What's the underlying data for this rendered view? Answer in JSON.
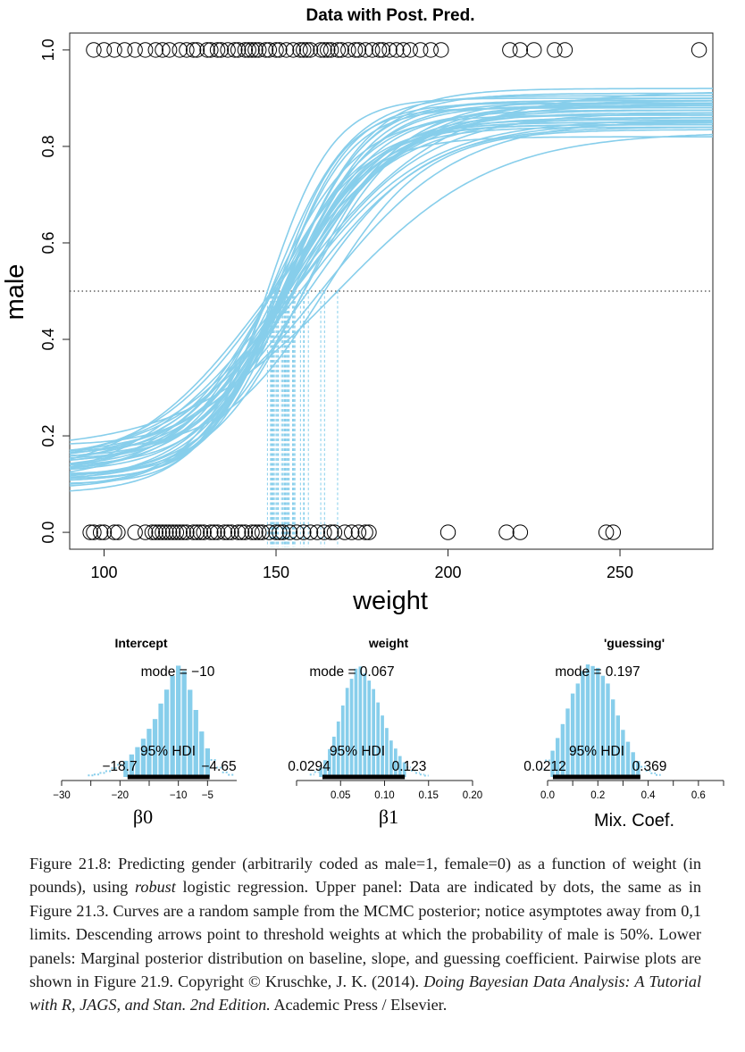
{
  "figure": {
    "main_plot": {
      "title": "Data with Post. Pred.",
      "xlabel": "weight",
      "ylabel": "male"
    },
    "panels": [
      {
        "title": "Intercept",
        "mode_label": "mode = −10",
        "hdi_label": "95% HDI",
        "hdi_low_label": "−18.7",
        "hdi_high_label": "−4.65",
        "xlabel": "β0"
      },
      {
        "title": "weight",
        "mode_label": "mode = 0.067",
        "hdi_label": "95% HDI",
        "hdi_low_label": "0.0294",
        "hdi_high_label": "0.123",
        "xlabel": "β1"
      },
      {
        "title": "'guessing'",
        "mode_label": "mode = 0.197",
        "hdi_label": "95% HDI",
        "hdi_low_label": "0.0212",
        "hdi_high_label": "0.369",
        "xlabel": "Mix. Coef."
      }
    ]
  },
  "chart_data": [
    {
      "type": "scatter",
      "title": "Data with Post. Pred.",
      "xlabel": "weight",
      "ylabel": "male",
      "xlim": [
        90,
        277
      ],
      "ylim": [
        -0.035,
        1.035
      ],
      "xticks": [
        "100",
        "150",
        "200",
        "250"
      ],
      "yticks": [
        "0.0",
        "0.2",
        "0.4",
        "0.6",
        "0.8",
        "1.0"
      ],
      "reference_line_y": 0.5,
      "colors": {
        "curves": "#87CEEB",
        "points": "#000000",
        "reference": "#444444"
      },
      "points_male": [
        97,
        100,
        103,
        106,
        109,
        112,
        115,
        117,
        119,
        122,
        124,
        126,
        127,
        130,
        131,
        133,
        134,
        136,
        138,
        139,
        141,
        142,
        143,
        144,
        145,
        147,
        148,
        150,
        151,
        153,
        155,
        157,
        158,
        159,
        160,
        163,
        164,
        165,
        166,
        168,
        169,
        171,
        173,
        174,
        176,
        178,
        180,
        181,
        183,
        185,
        187,
        189,
        192,
        195,
        198,
        218,
        221,
        225,
        231,
        234,
        273
      ],
      "points_female": [
        96,
        97,
        99,
        100,
        103,
        104,
        109,
        112,
        114,
        115,
        116,
        117,
        118,
        119,
        120,
        121,
        122,
        123,
        124,
        126,
        127,
        128,
        129,
        131,
        132,
        133,
        135,
        136,
        137,
        139,
        140,
        141,
        143,
        144,
        145,
        146,
        148,
        150,
        151,
        152,
        154,
        156,
        158,
        160,
        162,
        164,
        166,
        167,
        170,
        172,
        174,
        176,
        177,
        200,
        217,
        221,
        246,
        248
      ],
      "curves": [
        {
          "guess": 0.32,
          "b1": 0.06,
          "threshold": 159.4,
          "shape": 1.07
        },
        {
          "guess": 0.29,
          "b1": 0.052,
          "threshold": 155.2,
          "shape": 0.99
        },
        {
          "guess": 0.24,
          "b1": 0.103,
          "threshold": 150.0,
          "shape": 1.01
        },
        {
          "guess": 0.3,
          "b1": 0.08,
          "threshold": 153.4,
          "shape": 0.89
        },
        {
          "guess": 0.36,
          "b1": 0.084,
          "threshold": 152.0,
          "shape": 1.03
        },
        {
          "guess": 0.21,
          "b1": 0.057,
          "threshold": 153.8,
          "shape": 1.1
        },
        {
          "guess": 0.22,
          "b1": 0.049,
          "threshold": 148.8,
          "shape": 0.93
        },
        {
          "guess": 0.28,
          "b1": 0.056,
          "threshold": 149.5,
          "shape": 1.0
        },
        {
          "guess": 0.17,
          "b1": 0.044,
          "threshold": 153.3,
          "shape": 0.99
        },
        {
          "guess": 0.29,
          "b1": 0.078,
          "threshold": 152.5,
          "shape": 0.94
        },
        {
          "guess": 0.3,
          "b1": 0.053,
          "threshold": 157.1,
          "shape": 1.12
        },
        {
          "guess": 0.2,
          "b1": 0.064,
          "threshold": 155.5,
          "shape": 0.88
        },
        {
          "guess": 0.24,
          "b1": 0.096,
          "threshold": 150.6,
          "shape": 0.98
        },
        {
          "guess": 0.26,
          "b1": 0.053,
          "threshold": 155.1,
          "shape": 1.05
        },
        {
          "guess": 0.2,
          "b1": 0.105,
          "threshold": 147.5,
          "shape": 0.89
        },
        {
          "guess": 0.33,
          "b1": 0.067,
          "threshold": 164.1,
          "shape": 0.87
        },
        {
          "guess": 0.16,
          "b1": 0.08,
          "threshold": 152.0,
          "shape": 1.11
        },
        {
          "guess": 0.22,
          "b1": 0.081,
          "threshold": 153.3,
          "shape": 1.09
        },
        {
          "guess": 0.31,
          "b1": 0.081,
          "threshold": 152.9,
          "shape": 1.11
        },
        {
          "guess": 0.32,
          "b1": 0.077,
          "threshold": 152.5,
          "shape": 0.93
        },
        {
          "guess": 0.22,
          "b1": 0.068,
          "threshold": 158.2,
          "shape": 1.06
        },
        {
          "guess": 0.23,
          "b1": 0.08,
          "threshold": 152.6,
          "shape": 0.99
        },
        {
          "guess": 0.18,
          "b1": 0.079,
          "threshold": 151.6,
          "shape": 1.04
        },
        {
          "guess": 0.25,
          "b1": 0.077,
          "threshold": 152.9,
          "shape": 1.09
        },
        {
          "guess": 0.25,
          "b1": 0.066,
          "threshold": 155.1,
          "shape": 1.05
        },
        {
          "guess": 0.34,
          "b1": 0.044,
          "threshold": 167.9,
          "shape": 0.96
        },
        {
          "guess": 0.21,
          "b1": 0.085,
          "threshold": 153.7,
          "shape": 1.06
        },
        {
          "guess": 0.26,
          "b1": 0.064,
          "threshold": 153.3,
          "shape": 0.93
        },
        {
          "guess": 0.25,
          "b1": 0.075,
          "threshold": 150.3,
          "shape": 0.95
        },
        {
          "guess": 0.28,
          "b1": 0.069,
          "threshold": 152.7,
          "shape": 0.97
        },
        {
          "guess": 0.19,
          "b1": 0.087,
          "threshold": 148.4,
          "shape": 0.96
        },
        {
          "guess": 0.29,
          "b1": 0.05,
          "threshold": 163.0,
          "shape": 0.94
        },
        {
          "guess": 0.23,
          "b1": 0.057,
          "threshold": 152.8,
          "shape": 0.98
        },
        {
          "guess": 0.3,
          "b1": 0.075,
          "threshold": 149.2,
          "shape": 0.99
        },
        {
          "guess": 0.27,
          "b1": 0.077,
          "threshold": 154.8,
          "shape": 1.03
        },
        {
          "guess": 0.23,
          "b1": 0.075,
          "threshold": 158.0,
          "shape": 0.95
        },
        {
          "guess": 0.22,
          "b1": 0.098,
          "threshold": 150.7,
          "shape": 0.95
        },
        {
          "guess": 0.27,
          "b1": 0.08,
          "threshold": 148.6,
          "shape": 1.09
        },
        {
          "guess": 0.21,
          "b1": 0.087,
          "threshold": 152.4,
          "shape": 1.1
        },
        {
          "guess": 0.31,
          "b1": 0.073,
          "threshold": 149.0,
          "shape": 1.05
        }
      ]
    },
    {
      "type": "bar",
      "title": "Intercept",
      "xlabel": "β0",
      "mode": -10,
      "hdi": [
        -18.7,
        -4.65
      ],
      "xlim": [
        -30,
        0
      ],
      "xticks": [
        {
          "value": -30,
          "label": "−30"
        },
        {
          "value": -25,
          "label": ""
        },
        {
          "value": -20,
          "label": "−20"
        },
        {
          "value": -15,
          "label": ""
        },
        {
          "value": -10,
          "label": "−10"
        },
        {
          "value": -5,
          "label": "−5"
        }
      ],
      "bin_width": 1.0,
      "bins": [
        {
          "x": -25.0,
          "h": 0.014
        },
        {
          "x": -24.0,
          "h": 0.022
        },
        {
          "x": -23.0,
          "h": 0.036
        },
        {
          "x": -22.0,
          "h": 0.052
        },
        {
          "x": -21.0,
          "h": 0.077
        },
        {
          "x": -20.0,
          "h": 0.108
        },
        {
          "x": -19.0,
          "h": 0.144
        },
        {
          "x": -18.0,
          "h": 0.2
        },
        {
          "x": -17.0,
          "h": 0.265
        },
        {
          "x": -16.0,
          "h": 0.34
        },
        {
          "x": -15.0,
          "h": 0.428
        },
        {
          "x": -14.0,
          "h": 0.514
        },
        {
          "x": -13.0,
          "h": 0.652
        },
        {
          "x": -12.0,
          "h": 0.776
        },
        {
          "x": -11.0,
          "h": 0.899
        },
        {
          "x": -10.0,
          "h": 0.989
        },
        {
          "x": -9.0,
          "h": 0.941
        },
        {
          "x": -8.0,
          "h": 0.775
        },
        {
          "x": -7.0,
          "h": 0.595
        },
        {
          "x": -6.0,
          "h": 0.404
        },
        {
          "x": -5.0,
          "h": 0.254
        },
        {
          "x": -4.0,
          "h": 0.151
        },
        {
          "x": -3.0,
          "h": 0.083
        },
        {
          "x": -2.0,
          "h": 0.041
        },
        {
          "x": -1.0,
          "h": 0.019
        }
      ]
    },
    {
      "type": "bar",
      "title": "weight",
      "xlabel": "β1",
      "mode": 0.067,
      "hdi": [
        0.0294,
        0.123
      ],
      "xlim": [
        0.0,
        0.2
      ],
      "xticks": [
        {
          "value": 0.0,
          "label": ""
        },
        {
          "value": 0.05,
          "label": "0.05"
        },
        {
          "value": 0.1,
          "label": "0.10"
        },
        {
          "value": 0.15,
          "label": "0.15"
        },
        {
          "value": 0.2,
          "label": "0.20"
        }
      ],
      "bin_width": 0.005,
      "bins": [
        {
          "x": 0.0175,
          "h": 0.021
        },
        {
          "x": 0.0225,
          "h": 0.044
        },
        {
          "x": 0.0275,
          "h": 0.084
        },
        {
          "x": 0.0325,
          "h": 0.149
        },
        {
          "x": 0.0375,
          "h": 0.248
        },
        {
          "x": 0.0425,
          "h": 0.358
        },
        {
          "x": 0.0475,
          "h": 0.493
        },
        {
          "x": 0.0525,
          "h": 0.635
        },
        {
          "x": 0.0575,
          "h": 0.791
        },
        {
          "x": 0.0625,
          "h": 0.872
        },
        {
          "x": 0.0675,
          "h": 0.962
        },
        {
          "x": 0.0725,
          "h": 0.981
        },
        {
          "x": 0.0775,
          "h": 0.922
        },
        {
          "x": 0.0825,
          "h": 0.856
        },
        {
          "x": 0.0875,
          "h": 0.781
        },
        {
          "x": 0.0925,
          "h": 0.662
        },
        {
          "x": 0.0975,
          "h": 0.546
        },
        {
          "x": 0.1025,
          "h": 0.435
        },
        {
          "x": 0.1075,
          "h": 0.324
        },
        {
          "x": 0.1125,
          "h": 0.252
        },
        {
          "x": 0.1175,
          "h": 0.186
        },
        {
          "x": 0.1225,
          "h": 0.13
        },
        {
          "x": 0.1275,
          "h": 0.085
        },
        {
          "x": 0.1325,
          "h": 0.056
        },
        {
          "x": 0.1375,
          "h": 0.036
        },
        {
          "x": 0.1425,
          "h": 0.022
        },
        {
          "x": 0.1475,
          "h": 0.012
        }
      ]
    },
    {
      "type": "bar",
      "title": "'guessing'",
      "xlabel": "Mix. Coef.",
      "mode": 0.197,
      "hdi": [
        0.0212,
        0.369
      ],
      "xlim": [
        0.0,
        0.7
      ],
      "xticks": [
        {
          "value": 0.0,
          "label": "0.0"
        },
        {
          "value": 0.1,
          "label": ""
        },
        {
          "value": 0.2,
          "label": "0.2"
        },
        {
          "value": 0.3,
          "label": ""
        },
        {
          "value": 0.4,
          "label": "0.4"
        },
        {
          "value": 0.5,
          "label": ""
        },
        {
          "value": 0.6,
          "label": "0.6"
        },
        {
          "value": 0.7,
          "label": ""
        }
      ],
      "bin_width": 0.02,
      "bins": [
        {
          "x": -0.02,
          "h": 0.07
        },
        {
          "x": 0.0,
          "h": 0.147
        },
        {
          "x": 0.02,
          "h": 0.233
        },
        {
          "x": 0.04,
          "h": 0.346
        },
        {
          "x": 0.06,
          "h": 0.47
        },
        {
          "x": 0.08,
          "h": 0.608
        },
        {
          "x": 0.1,
          "h": 0.741
        },
        {
          "x": 0.12,
          "h": 0.83
        },
        {
          "x": 0.14,
          "h": 0.941
        },
        {
          "x": 0.16,
          "h": 1.0
        },
        {
          "x": 0.18,
          "h": 0.986
        },
        {
          "x": 0.2,
          "h": 0.969
        },
        {
          "x": 0.22,
          "h": 0.899
        },
        {
          "x": 0.24,
          "h": 0.83
        },
        {
          "x": 0.26,
          "h": 0.689
        },
        {
          "x": 0.28,
          "h": 0.546
        },
        {
          "x": 0.3,
          "h": 0.418
        },
        {
          "x": 0.32,
          "h": 0.313
        },
        {
          "x": 0.34,
          "h": 0.22
        },
        {
          "x": 0.36,
          "h": 0.142
        },
        {
          "x": 0.38,
          "h": 0.09
        },
        {
          "x": 0.4,
          "h": 0.055
        },
        {
          "x": 0.42,
          "h": 0.033
        },
        {
          "x": 0.44,
          "h": 0.018
        }
      ]
    }
  ],
  "caption": {
    "part1": "Figure 21.8: Predicting gender (arbitrarily coded as male=1, female=0) as a function of weight (in pounds), using ",
    "emph1": "robust",
    "part2": " logistic regression. Upper panel: Data are indicated by dots, the same as in Figure 21.3. Curves are a random sample from the MCMC posterior; notice asymptotes away from 0,1 limits. Descending arrows point to threshold weights at which the probability of male is 50%. Lower panels: Marginal posterior distribution on baseline, slope, and guessing coefficient. Pairwise plots are shown in Figure 21.9. Copyright © Kruschke, J. K. (2014). ",
    "emph2": "Doing Bayesian Data Analysis: A Tutorial with R, JAGS, and Stan. 2nd Edition.",
    "part3": " Academic Press / Elsevier."
  }
}
